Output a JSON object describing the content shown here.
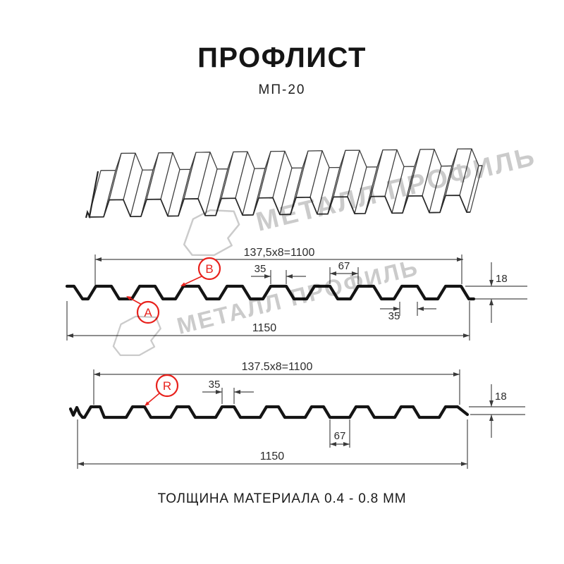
{
  "page": {
    "title": "ПРОФЛИСТ",
    "subtitle": "МП-20",
    "footer_note": "ТОЛЩИНА МАТЕРИАЛА 0.4 - 0.8 ММ"
  },
  "watermark": {
    "text": "МЕТАЛЛ ПРОФИЛЬ",
    "color": "#cbcbcb"
  },
  "colors": {
    "drawing_line": "#141414",
    "dimension_line": "#4a4a4a",
    "accent_red": "#e8211c",
    "background": "#ffffff"
  },
  "diagrams": [
    {
      "id": "front-profile",
      "module_width": "137,5x8=1100",
      "crest_top_width": "35",
      "crest_spacing": "67",
      "profile_height": "18",
      "crest_bottom_width": "35",
      "overall_width": "1150",
      "marks": [
        "A",
        "B"
      ]
    },
    {
      "id": "reverse-profile",
      "module_width": "137.5x8=1100",
      "crest_top_width": "35",
      "valley_width": "67",
      "profile_height": "18",
      "overall_width": "1150",
      "marks": [
        "R"
      ]
    }
  ]
}
